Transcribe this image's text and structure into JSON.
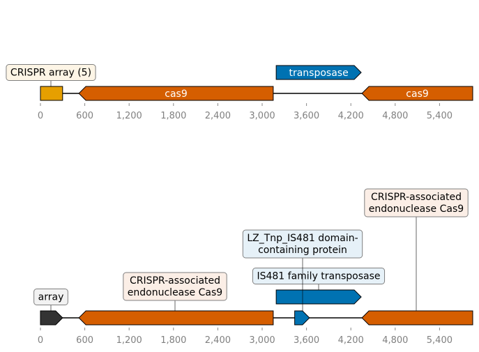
{
  "panels": [
    {
      "id": "top",
      "features": [
        {
          "label": "CRISPR array (5)",
          "start": 0,
          "end": 300,
          "strand": 0,
          "color": "#e69f00",
          "row": 0,
          "label_style": "box"
        },
        {
          "label": "cas9",
          "start": 520,
          "end": 3150,
          "strand": -1,
          "color": "#d55e00",
          "row": 0,
          "label_style": "inline",
          "text_color": "#ffffff"
        },
        {
          "label": "transposase",
          "start": 3190,
          "end": 4340,
          "strand": 1,
          "color": "#0072b2",
          "row": 1,
          "label_style": "inline",
          "text_color": "#ffffff"
        },
        {
          "label": "cas9",
          "start": 4350,
          "end": 5870,
          "strand": -1,
          "color": "#d55e00",
          "row": 0,
          "label_style": "inline",
          "text_color": "#ffffff"
        }
      ],
      "ticks": [
        0,
        600,
        1200,
        1800,
        2400,
        3000,
        3600,
        4200,
        4800,
        5400
      ],
      "tick_labels": [
        "0",
        "600",
        "1,200",
        "1,800",
        "2,400",
        "3,000",
        "3,600",
        "4,200",
        "4,800",
        "5,400"
      ]
    },
    {
      "id": "bottom",
      "features": [
        {
          "label": "array",
          "start": 0,
          "end": 300,
          "strand": 1,
          "color": "#333333",
          "row": 0,
          "label_style": "box",
          "box_fill": "#f2f2f2",
          "label_pos": "above"
        },
        {
          "label": "CRISPR-associated\nendonuclease Cas9",
          "start": 520,
          "end": 3150,
          "strand": -1,
          "color": "#d55e00",
          "row": 0,
          "label_style": "box",
          "box_fill": "#fbeee6"
        },
        {
          "label": "IS481 family transposase",
          "start": 3190,
          "end": 4340,
          "strand": 1,
          "color": "#0072b2",
          "row": 1,
          "label_style": "box",
          "box_fill": "#e6f1f8"
        },
        {
          "label": "LZ_Tnp_IS481 domain-\ncontaining protein",
          "start": 3440,
          "end": 3640,
          "strand": 1,
          "color": "#0072b2",
          "row": 0,
          "label_style": "box",
          "box_fill": "#e6f1f8"
        },
        {
          "label": "CRISPR-associated\nendonuclease Cas9",
          "start": 4350,
          "end": 5870,
          "strand": -1,
          "color": "#d55e00",
          "row": 0,
          "label_style": "box",
          "box_fill": "#fbeee6"
        }
      ],
      "ticks": [
        0,
        600,
        1200,
        1800,
        2400,
        3000,
        3600,
        4200,
        4800,
        5400
      ],
      "tick_labels": [
        "0",
        "600",
        "1,200",
        "1,800",
        "2,400",
        "3,000",
        "3,600",
        "4,200",
        "4,800",
        "5,400"
      ]
    }
  ]
}
